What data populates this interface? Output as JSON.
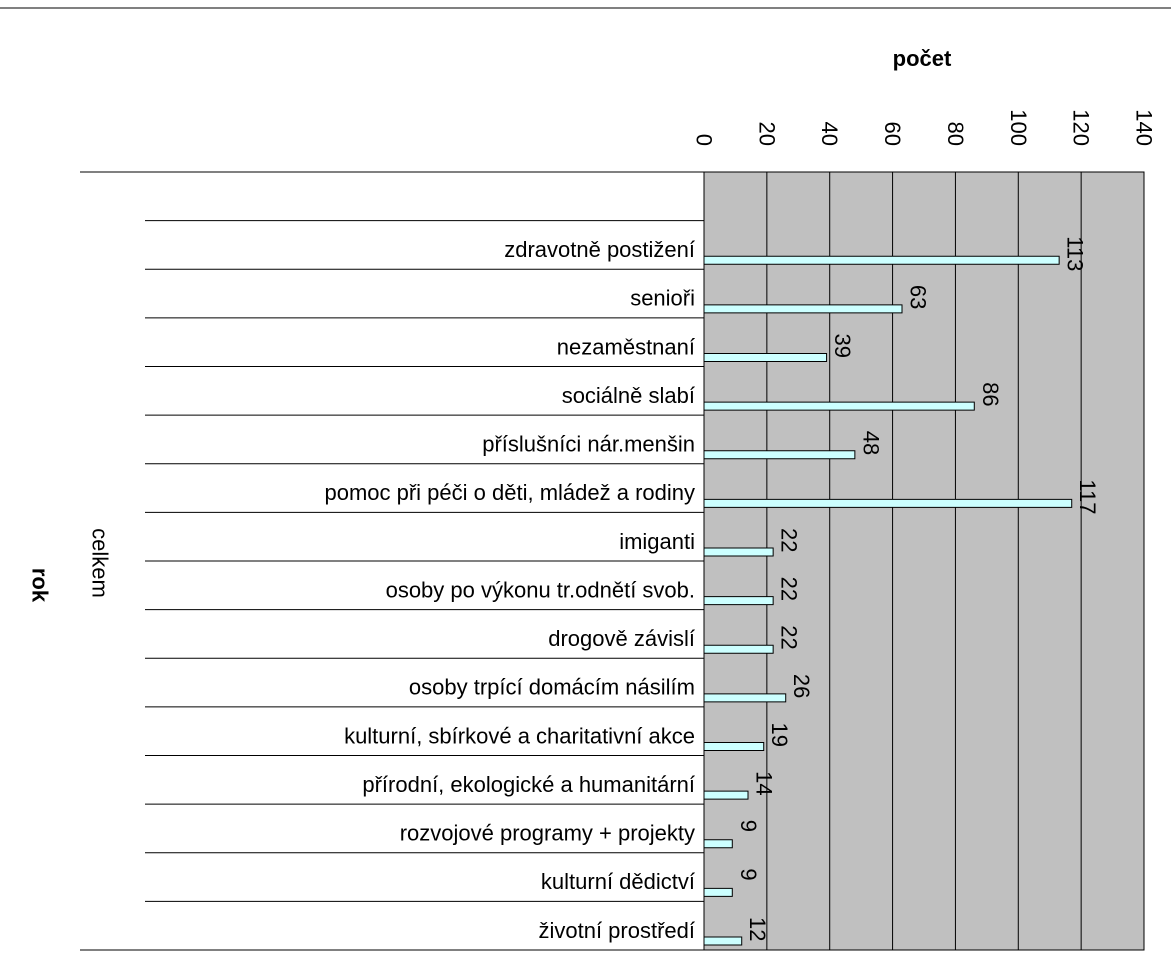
{
  "chart_data": {
    "type": "bar",
    "orientation": "horizontal",
    "title": "počet",
    "y_axis_label": "rok",
    "group_label": "celkem",
    "categories": [
      null,
      "zdravotně postižení",
      "senioři",
      "nezaměstnaní",
      "sociálně slabí",
      "příslušníci nár.menšin",
      "pomoc při péči o děti, mládež a rodiny",
      "imiganti",
      "osoby po výkonu tr.odnětí svob.",
      "drogově závislí",
      "osoby trpící domácím násilím",
      "kulturní, sbírkové a charitativní akce",
      "přírodní, ekologické a humanitární",
      "rozvojové programy + projekty",
      "kulturní dědictví",
      "životní prostředí"
    ],
    "values": [
      null,
      113,
      63,
      39,
      86,
      48,
      117,
      22,
      22,
      22,
      26,
      19,
      14,
      9,
      9,
      12
    ],
    "color": "#ccffff",
    "plot_background": "#c0c0c0",
    "xlim": [
      0,
      140
    ],
    "xticks": [
      0,
      20,
      40,
      60,
      80,
      100,
      120,
      140
    ],
    "grid": true
  }
}
